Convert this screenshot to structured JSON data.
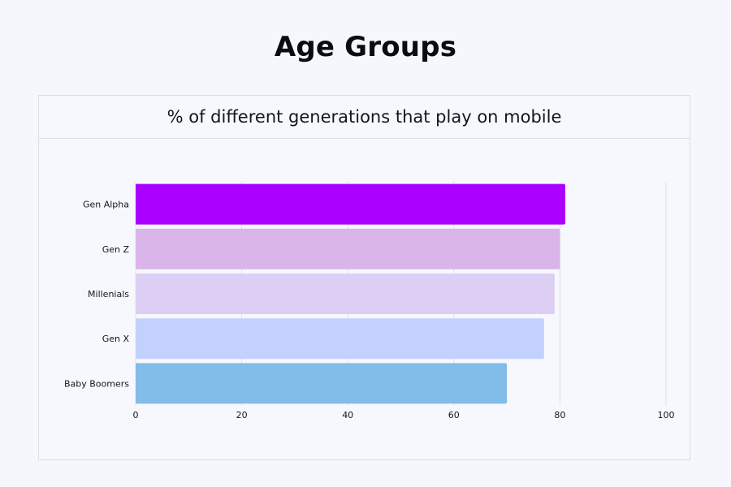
{
  "page": {
    "title": "Age Groups"
  },
  "chart_data": {
    "type": "bar",
    "orientation": "horizontal",
    "title": "% of different generations that play on mobile",
    "xlabel": "",
    "ylabel": "",
    "categories": [
      "Gen Alpha",
      "Gen Z",
      "Millenials",
      "Gen X",
      "Baby Boomers"
    ],
    "values": [
      81,
      80,
      79,
      77,
      70
    ],
    "bar_colors": [
      "#aa00ff",
      "#dab5ea",
      "#ddcef4",
      "#c3d1ff",
      "#82bce8"
    ],
    "xlim": [
      0,
      100
    ],
    "xticks": [
      0,
      20,
      40,
      60,
      80,
      100
    ],
    "grid": true,
    "legend": "none"
  }
}
